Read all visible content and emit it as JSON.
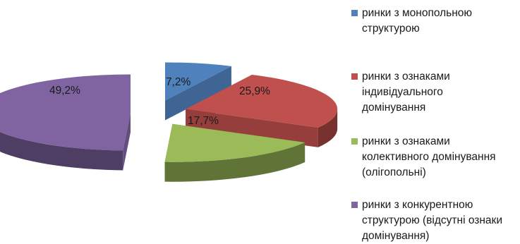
{
  "chart_data": {
    "type": "pie",
    "style": "3d-exploded",
    "title": "",
    "categories": [
      "ринки з монопольною структурою",
      "ринки з ознаками індивідуального домінування",
      "ринки з ознаками колективного домінування (олігопольні)",
      "ринки з конкурентною структурою (відсутні ознаки домінування)"
    ],
    "values": [
      7.2,
      25.9,
      17.7,
      49.2
    ],
    "value_labels": [
      "7,2%",
      "25,9%",
      "17,7%",
      "49,2%"
    ],
    "colors": [
      "#4f81bd",
      "#c0504d",
      "#9bbb59",
      "#8064a2"
    ],
    "legend_position": "right",
    "legend_lines": [
      [
        "ринки з монопольною",
        "структурою"
      ],
      [
        "ринки з ознаками",
        "індивідуального",
        "домінування"
      ],
      [
        "ринки з ознаками",
        "колективного домінування",
        "(олігопольні)"
      ],
      [
        "ринки з конкурентною",
        "структурою (відсутні ознаки",
        "домінування)"
      ]
    ]
  }
}
